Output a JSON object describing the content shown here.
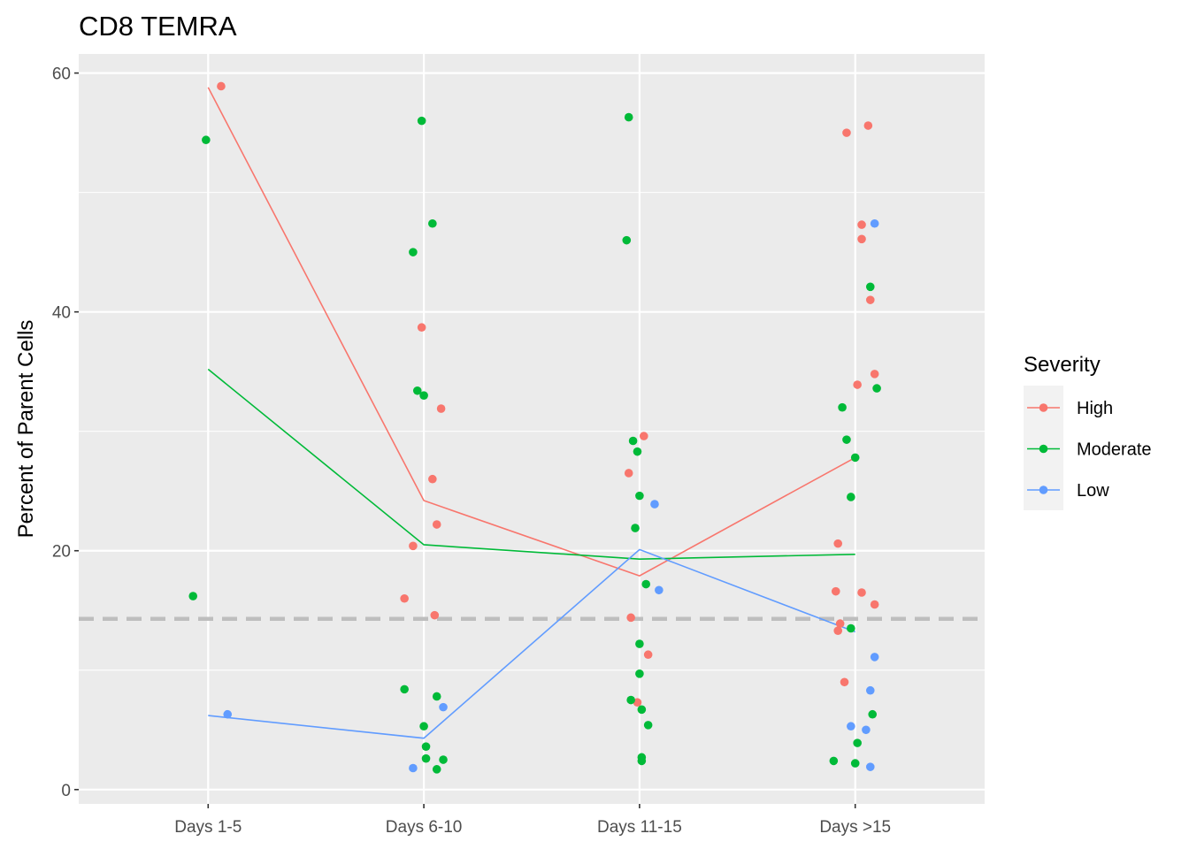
{
  "chart_data": {
    "type": "scatter",
    "title": "CD8 TEMRA",
    "xlabel": "",
    "ylabel": "Percent of Parent Cells",
    "categories": [
      "Days 1-5",
      "Days 6-10",
      "Days 11-15",
      "Days >15"
    ],
    "ylim": [
      -1.2,
      61.6
    ],
    "yticks": [
      0,
      20,
      40,
      60
    ],
    "grid": true,
    "reference_line": {
      "y": 14.3,
      "style": "dashed",
      "color": "#bebebe"
    },
    "legend": {
      "title": "Severity",
      "position": "right"
    },
    "series": [
      {
        "name": "High",
        "color": "#F8766D",
        "mean_line": [
          58.8,
          24.2,
          17.9,
          27.8
        ],
        "points": [
          {
            "cat": 0,
            "jitter": 0.06,
            "y": 58.9
          },
          {
            "cat": 1,
            "jitter": -0.01,
            "y": 38.7
          },
          {
            "cat": 1,
            "jitter": 0.08,
            "y": 31.9
          },
          {
            "cat": 1,
            "jitter": 0.04,
            "y": 26.0
          },
          {
            "cat": 1,
            "jitter": 0.06,
            "y": 22.2
          },
          {
            "cat": 1,
            "jitter": -0.05,
            "y": 20.4
          },
          {
            "cat": 1,
            "jitter": -0.09,
            "y": 16.0
          },
          {
            "cat": 1,
            "jitter": 0.05,
            "y": 14.6
          },
          {
            "cat": 2,
            "jitter": 0.02,
            "y": 29.6
          },
          {
            "cat": 2,
            "jitter": -0.05,
            "y": 26.5
          },
          {
            "cat": 2,
            "jitter": -0.04,
            "y": 14.4
          },
          {
            "cat": 2,
            "jitter": 0.04,
            "y": 11.3
          },
          {
            "cat": 2,
            "jitter": -0.01,
            "y": 7.3
          },
          {
            "cat": 3,
            "jitter": -0.04,
            "y": 55.0
          },
          {
            "cat": 3,
            "jitter": 0.06,
            "y": 55.6
          },
          {
            "cat": 3,
            "jitter": 0.03,
            "y": 47.3
          },
          {
            "cat": 3,
            "jitter": 0.03,
            "y": 46.1
          },
          {
            "cat": 3,
            "jitter": 0.07,
            "y": 41.0
          },
          {
            "cat": 3,
            "jitter": 0.09,
            "y": 34.8
          },
          {
            "cat": 3,
            "jitter": 0.01,
            "y": 33.9
          },
          {
            "cat": 3,
            "jitter": -0.08,
            "y": 20.6
          },
          {
            "cat": 3,
            "jitter": -0.09,
            "y": 16.6
          },
          {
            "cat": 3,
            "jitter": 0.03,
            "y": 16.5
          },
          {
            "cat": 3,
            "jitter": 0.09,
            "y": 15.5
          },
          {
            "cat": 3,
            "jitter": -0.07,
            "y": 13.9
          },
          {
            "cat": 3,
            "jitter": -0.08,
            "y": 13.3
          },
          {
            "cat": 3,
            "jitter": -0.05,
            "y": 9.0
          }
        ]
      },
      {
        "name": "Moderate",
        "color": "#00BA38",
        "mean_line": [
          35.2,
          20.5,
          19.3,
          19.7
        ],
        "points": [
          {
            "cat": 0,
            "jitter": -0.01,
            "y": 54.4
          },
          {
            "cat": 0,
            "jitter": -0.07,
            "y": 16.2
          },
          {
            "cat": 1,
            "jitter": -0.01,
            "y": 56.0
          },
          {
            "cat": 1,
            "jitter": 0.04,
            "y": 47.4
          },
          {
            "cat": 1,
            "jitter": -0.05,
            "y": 45.0
          },
          {
            "cat": 1,
            "jitter": -0.03,
            "y": 33.4
          },
          {
            "cat": 1,
            "jitter": 0.0,
            "y": 33.0
          },
          {
            "cat": 1,
            "jitter": -0.09,
            "y": 8.4
          },
          {
            "cat": 1,
            "jitter": 0.06,
            "y": 7.8
          },
          {
            "cat": 1,
            "jitter": 0.0,
            "y": 5.3
          },
          {
            "cat": 1,
            "jitter": 0.01,
            "y": 3.6
          },
          {
            "cat": 1,
            "jitter": 0.01,
            "y": 2.6
          },
          {
            "cat": 1,
            "jitter": 0.09,
            "y": 2.5
          },
          {
            "cat": 1,
            "jitter": 0.06,
            "y": 1.7
          },
          {
            "cat": 2,
            "jitter": -0.05,
            "y": 56.3
          },
          {
            "cat": 2,
            "jitter": -0.06,
            "y": 46.0
          },
          {
            "cat": 2,
            "jitter": -0.03,
            "y": 29.2
          },
          {
            "cat": 2,
            "jitter": -0.01,
            "y": 28.3
          },
          {
            "cat": 2,
            "jitter": 0.0,
            "y": 24.6
          },
          {
            "cat": 2,
            "jitter": -0.02,
            "y": 21.9
          },
          {
            "cat": 2,
            "jitter": 0.03,
            "y": 17.2
          },
          {
            "cat": 2,
            "jitter": 0.0,
            "y": 12.2
          },
          {
            "cat": 2,
            "jitter": 0.0,
            "y": 9.7
          },
          {
            "cat": 2,
            "jitter": -0.04,
            "y": 7.5
          },
          {
            "cat": 2,
            "jitter": 0.01,
            "y": 6.7
          },
          {
            "cat": 2,
            "jitter": 0.04,
            "y": 5.4
          },
          {
            "cat": 2,
            "jitter": 0.01,
            "y": 2.7
          },
          {
            "cat": 2,
            "jitter": 0.01,
            "y": 2.4
          },
          {
            "cat": 3,
            "jitter": 0.07,
            "y": 42.1
          },
          {
            "cat": 3,
            "jitter": 0.1,
            "y": 33.6
          },
          {
            "cat": 3,
            "jitter": -0.06,
            "y": 32.0
          },
          {
            "cat": 3,
            "jitter": -0.04,
            "y": 29.3
          },
          {
            "cat": 3,
            "jitter": 0.0,
            "y": 27.8
          },
          {
            "cat": 3,
            "jitter": -0.02,
            "y": 24.5
          },
          {
            "cat": 3,
            "jitter": -0.02,
            "y": 13.5
          },
          {
            "cat": 3,
            "jitter": 0.08,
            "y": 6.3
          },
          {
            "cat": 3,
            "jitter": 0.01,
            "y": 3.9
          },
          {
            "cat": 3,
            "jitter": -0.1,
            "y": 2.4
          },
          {
            "cat": 3,
            "jitter": 0.0,
            "y": 2.2
          }
        ]
      },
      {
        "name": "Low",
        "color": "#619CFF",
        "mean_line": [
          6.2,
          4.3,
          20.1,
          13.2
        ],
        "points": [
          {
            "cat": 0,
            "jitter": 0.09,
            "y": 6.3
          },
          {
            "cat": 1,
            "jitter": 0.09,
            "y": 6.9
          },
          {
            "cat": 1,
            "jitter": -0.05,
            "y": 1.8
          },
          {
            "cat": 2,
            "jitter": 0.07,
            "y": 23.9
          },
          {
            "cat": 2,
            "jitter": 0.09,
            "y": 16.7
          },
          {
            "cat": 3,
            "jitter": 0.09,
            "y": 47.4
          },
          {
            "cat": 3,
            "jitter": 0.09,
            "y": 11.1
          },
          {
            "cat": 3,
            "jitter": 0.07,
            "y": 8.3
          },
          {
            "cat": 3,
            "jitter": -0.02,
            "y": 5.3
          },
          {
            "cat": 3,
            "jitter": 0.05,
            "y": 5.0
          },
          {
            "cat": 3,
            "jitter": 0.07,
            "y": 1.9
          }
        ]
      }
    ]
  }
}
